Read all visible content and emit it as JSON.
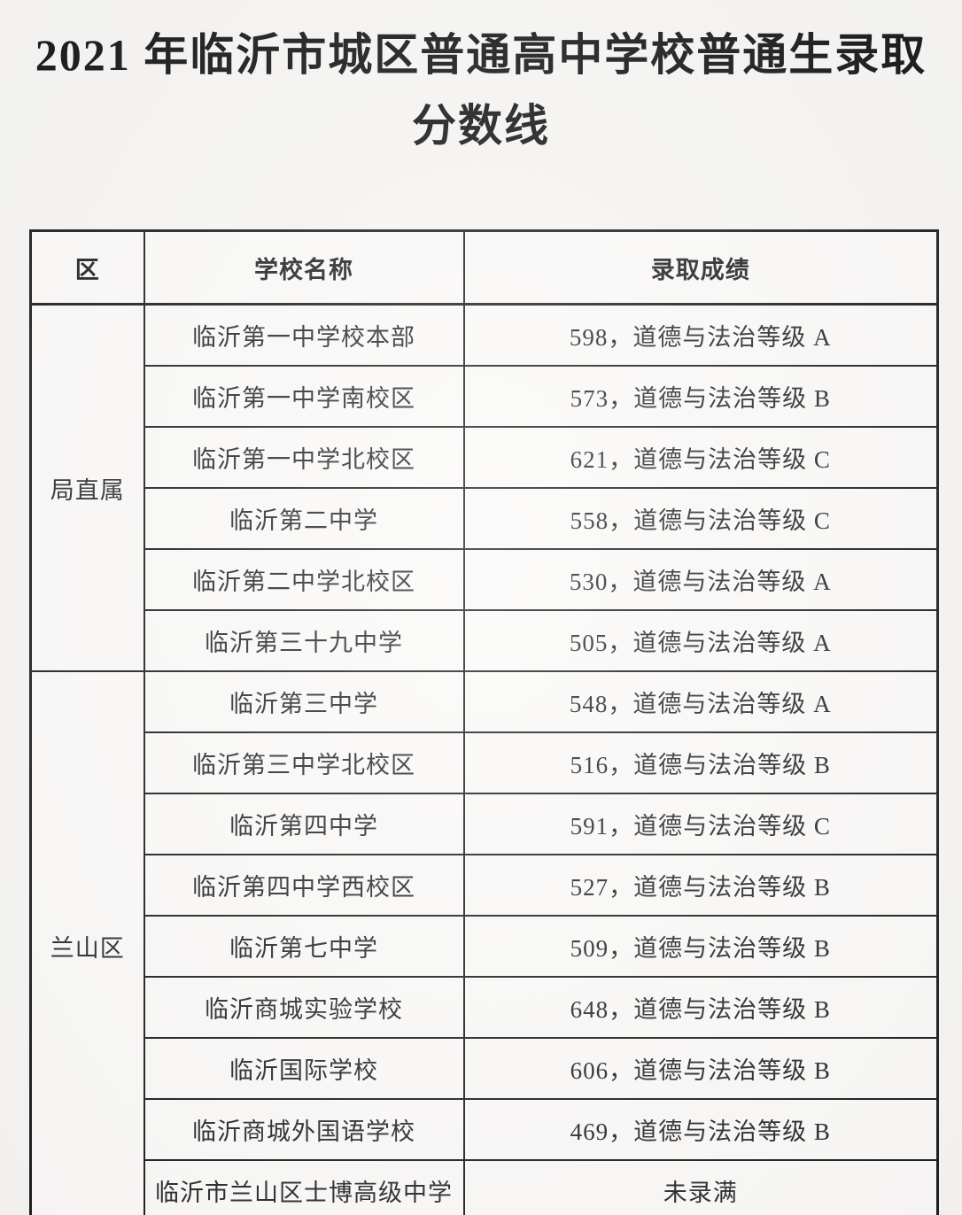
{
  "page": {
    "title_line1": "2021 年临沂市城区普通高中学校普通生录取",
    "title_line2": "分数线"
  },
  "table": {
    "headers": [
      "区",
      "学校名称",
      "录取成绩"
    ],
    "groups": [
      {
        "district": "局直属",
        "rows": [
          {
            "school": "临沂第一中学校本部",
            "score": "598，道德与法治等级 A"
          },
          {
            "school": "临沂第一中学南校区",
            "score": "573，道德与法治等级 B"
          },
          {
            "school": "临沂第一中学北校区",
            "score": "621，道德与法治等级 C"
          },
          {
            "school": "临沂第二中学",
            "score": "558，道德与法治等级 C"
          },
          {
            "school": "临沂第二中学北校区",
            "score": "530，道德与法治等级 A"
          },
          {
            "school": "临沂第三十九中学",
            "score": "505，道德与法治等级 A"
          }
        ]
      },
      {
        "district": "兰山区",
        "rows": [
          {
            "school": "临沂第三中学",
            "score": "548，道德与法治等级 A"
          },
          {
            "school": "临沂第三中学北校区",
            "score": "516，道德与法治等级 B"
          },
          {
            "school": "临沂第四中学",
            "score": "591，道德与法治等级 C"
          },
          {
            "school": "临沂第四中学西校区",
            "score": "527，道德与法治等级 B"
          },
          {
            "school": "临沂第七中学",
            "score": "509，道德与法治等级 B"
          },
          {
            "school": "临沂商城实验学校",
            "score": "648，道德与法治等级 B"
          },
          {
            "school": "临沂国际学校",
            "score": "606，道德与法治等级 B"
          },
          {
            "school": "临沂商城外国语学校",
            "score": "469，道德与法治等级 B"
          },
          {
            "school": "临沂市兰山区士博高级中学",
            "score": "未录满"
          }
        ]
      }
    ]
  },
  "colors": {
    "page_background": "#f6f5f3",
    "cell_background": "#faf9f8",
    "border": "#1c1c1c",
    "text": "#262626"
  }
}
